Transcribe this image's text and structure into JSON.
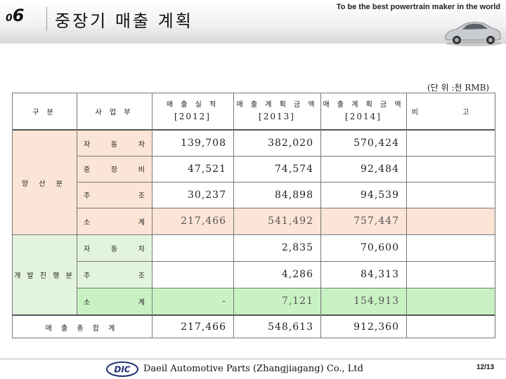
{
  "header": {
    "section_zero": "0",
    "section_six": "6",
    "title": "중장기 매출 계획",
    "slogan": "To be the best powertrain maker in the world"
  },
  "unit_label": "(단 위 :천 RMB)",
  "table": {
    "headers": {
      "gubun": "구 분",
      "division": "사 업 부",
      "sales_actual": "매 출 실 적",
      "sales_actual_year": "[2012]",
      "plan_2013": "매 출 계 획 금 액",
      "plan_2013_year": "[2013]",
      "plan_2014": "매 출 계 획 금 액",
      "plan_2014_year": "[2014]",
      "note": "비 고"
    },
    "group_mass": "양 산 분",
    "group_dev": "개 발 진 행 분",
    "rows": [
      {
        "c1": "자",
        "c2": "동",
        "c3": "차",
        "v2012": "139,708",
        "v2013": "382,020",
        "v2014": "570,424"
      },
      {
        "c1": "중",
        "c2": "장",
        "c3": "비",
        "v2012": "47,521",
        "v2013": "74,574",
        "v2014": "92,484"
      },
      {
        "c1": "주",
        "c2": "",
        "c3": "조",
        "v2012": "30,237",
        "v2013": "84,898",
        "v2014": "94,539"
      },
      {
        "c1": "소",
        "c2": "",
        "c3": "계",
        "v2012": "217,466",
        "v2013": "541,492",
        "v2014": "757,447"
      },
      {
        "c1": "자",
        "c2": "동",
        "c3": "차",
        "v2012": "",
        "v2013": "2,835",
        "v2014": "70,600"
      },
      {
        "c1": "주",
        "c2": "",
        "c3": "조",
        "v2012": "",
        "v2013": "4,286",
        "v2014": "84,313"
      },
      {
        "c1": "소",
        "c2": "",
        "c3": "계",
        "v2012": "-",
        "v2013": "7,121",
        "v2014": "154,913"
      }
    ],
    "total": {
      "label": "매 출 총 합 계",
      "v2012": "217,466",
      "v2013": "548,613",
      "v2014": "912,360"
    }
  },
  "footer": {
    "logo_text": "DIC",
    "company": "Daeil Automotive Parts (Zhangjiagang) Co., Ltd",
    "page": "12/13"
  }
}
